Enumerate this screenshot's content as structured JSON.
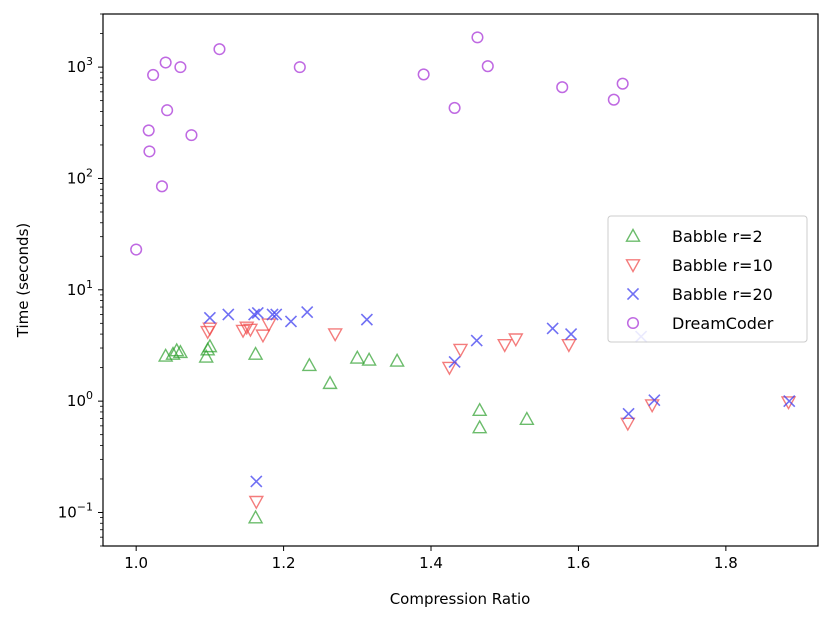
{
  "chart_data": {
    "type": "scatter",
    "title": "",
    "xlabel": "Compression Ratio",
    "ylabel": "Time (seconds)",
    "xlim": [
      0.955,
      1.925
    ],
    "ylim": [
      0.05,
      3000
    ],
    "yscale": "log",
    "grid": false,
    "legend_position": "center-right",
    "x_ticks": [
      {
        "value": 1.0,
        "label": "1.0"
      },
      {
        "value": 1.2,
        "label": "1.2"
      },
      {
        "value": 1.4,
        "label": "1.4"
      },
      {
        "value": 1.6,
        "label": "1.6"
      },
      {
        "value": 1.8,
        "label": "1.8"
      }
    ],
    "y_ticks": [
      {
        "value": 0.1,
        "base": "10",
        "exp": "−1"
      },
      {
        "value": 1,
        "base": "10",
        "exp": "0"
      },
      {
        "value": 10,
        "base": "10",
        "exp": "1"
      },
      {
        "value": 100,
        "base": "10",
        "exp": "2"
      },
      {
        "value": 1000,
        "base": "10",
        "exp": "3"
      }
    ],
    "series": [
      {
        "name": "Babble r=2",
        "marker": "triangle-up",
        "color": "#2ca02c",
        "points": [
          [
            1.04,
            2.55
          ],
          [
            1.05,
            2.65
          ],
          [
            1.055,
            2.85
          ],
          [
            1.06,
            2.75
          ],
          [
            1.095,
            2.5
          ],
          [
            1.097,
            2.9
          ],
          [
            1.1,
            3.1
          ],
          [
            1.162,
            2.65
          ],
          [
            1.162,
            0.09
          ],
          [
            1.235,
            2.1
          ],
          [
            1.263,
            1.45
          ],
          [
            1.3,
            2.45
          ],
          [
            1.316,
            2.35
          ],
          [
            1.354,
            2.3
          ],
          [
            1.466,
            0.83
          ],
          [
            1.466,
            0.58
          ],
          [
            1.53,
            0.69
          ]
        ]
      },
      {
        "name": "Babble r=10",
        "marker": "triangle-down",
        "color": "#ef4444",
        "points": [
          [
            1.097,
            4.2
          ],
          [
            1.1,
            4.5
          ],
          [
            1.145,
            4.3
          ],
          [
            1.15,
            4.6
          ],
          [
            1.155,
            4.4
          ],
          [
            1.172,
            3.9
          ],
          [
            1.18,
            4.9
          ],
          [
            1.163,
            0.125
          ],
          [
            1.27,
            4.0
          ],
          [
            1.425,
            2.0
          ],
          [
            1.44,
            2.9
          ],
          [
            1.5,
            3.2
          ],
          [
            1.515,
            3.6
          ],
          [
            1.587,
            3.2
          ],
          [
            1.667,
            0.63
          ],
          [
            1.7,
            0.92
          ],
          [
            1.885,
            0.98
          ]
        ]
      },
      {
        "name": "Babble r=20",
        "marker": "x",
        "color": "#4040f0",
        "points": [
          [
            1.1,
            5.6
          ],
          [
            1.125,
            6.0
          ],
          [
            1.16,
            6.0
          ],
          [
            1.165,
            6.2
          ],
          [
            1.185,
            6.0
          ],
          [
            1.19,
            6.0
          ],
          [
            1.21,
            5.2
          ],
          [
            1.232,
            6.3
          ],
          [
            1.313,
            5.4
          ],
          [
            1.163,
            0.19
          ],
          [
            1.432,
            2.25
          ],
          [
            1.462,
            3.5
          ],
          [
            1.565,
            4.5
          ],
          [
            1.59,
            4.0
          ],
          [
            1.668,
            0.77
          ],
          [
            1.685,
            3.8
          ],
          [
            1.703,
            1.02
          ],
          [
            1.886,
            1.0
          ]
        ]
      },
      {
        "name": "DreamCoder",
        "marker": "circle",
        "color": "#b44fdd",
        "points": [
          [
            1.0,
            23
          ],
          [
            1.017,
            270
          ],
          [
            1.018,
            175
          ],
          [
            1.023,
            850
          ],
          [
            1.035,
            85
          ],
          [
            1.04,
            1100
          ],
          [
            1.042,
            410
          ],
          [
            1.06,
            1000
          ],
          [
            1.075,
            245
          ],
          [
            1.113,
            1450
          ],
          [
            1.222,
            1000
          ],
          [
            1.39,
            860
          ],
          [
            1.432,
            430
          ],
          [
            1.463,
            1850
          ],
          [
            1.477,
            1020
          ],
          [
            1.578,
            660
          ],
          [
            1.648,
            510
          ],
          [
            1.66,
            710
          ]
        ]
      }
    ]
  }
}
